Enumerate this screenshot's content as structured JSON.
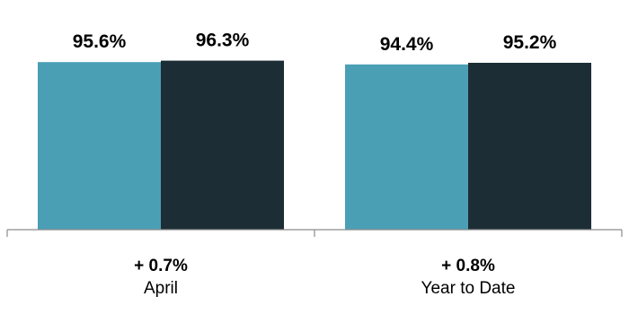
{
  "chart_data": {
    "type": "bar",
    "categories": [
      "April",
      "Year to Date"
    ],
    "category_deltas": [
      "+ 0.7%",
      "+ 0.8%"
    ],
    "series": [
      {
        "values": [
          95.6,
          94.4
        ],
        "labels": [
          "95.6%",
          "94.4%"
        ],
        "color": "#4a9fb5"
      },
      {
        "values": [
          96.3,
          95.2
        ],
        "labels": [
          "96.3%",
          "95.2%"
        ],
        "color": "#1c2d35"
      }
    ],
    "title": "",
    "xlabel": "",
    "ylabel": "",
    "grid": false,
    "legend": "none"
  }
}
